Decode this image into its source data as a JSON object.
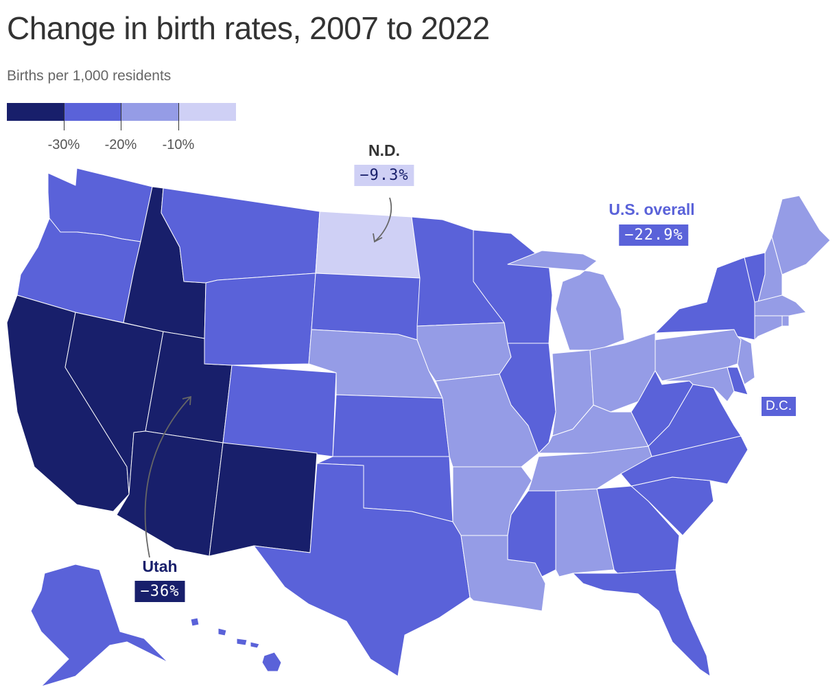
{
  "title": "Change in birth rates, 2007 to 2022",
  "subtitle": "Births per 1,000 residents",
  "colors": {
    "bin_1": "#181f6b",
    "bin_2": "#5a62d9",
    "bin_3": "#959ce6",
    "bin_4": "#cfd0f5",
    "arrow": "#666666"
  },
  "legend": {
    "ticks": [
      "-30%",
      "-20%",
      "-10%"
    ]
  },
  "callouts": {
    "nd": {
      "name": "N.D.",
      "value": "−9.3%"
    },
    "us": {
      "name": "U.S. overall",
      "value": "−22.9%"
    },
    "utah": {
      "name": "Utah",
      "value": "−36%"
    },
    "dc": {
      "name": "D.C."
    }
  },
  "states": {
    "bin_1": [
      "CA",
      "NV",
      "UT",
      "ID",
      "AZ",
      "NM"
    ],
    "bin_2": [
      "WA",
      "OR",
      "MT",
      "WY",
      "CO",
      "SD",
      "KS",
      "OK",
      "TX",
      "MN",
      "WI",
      "IL",
      "MS",
      "GA",
      "FL",
      "SC",
      "NC",
      "VA",
      "WV",
      "NY",
      "VT",
      "DE",
      "AK",
      "HI",
      "DC"
    ],
    "bin_3": [
      "NE",
      "IA",
      "MO",
      "AR",
      "LA",
      "AL",
      "TN",
      "KY",
      "IN",
      "OH",
      "MI",
      "PA",
      "NJ",
      "MD",
      "CT",
      "RI",
      "MA",
      "NH",
      "ME"
    ],
    "bin_4": [
      "ND"
    ]
  }
}
